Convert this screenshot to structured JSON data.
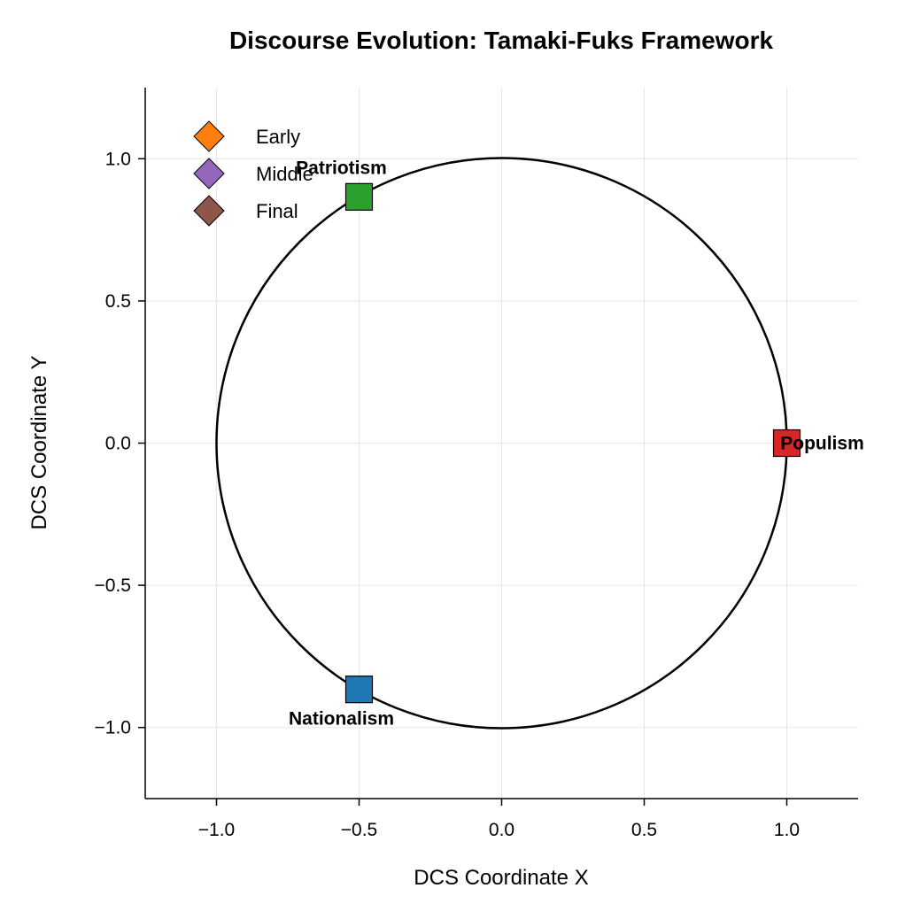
{
  "chart_data": {
    "type": "scatter",
    "title": "Discourse Evolution: Tamaki-Fuks Framework",
    "xlabel": "DCS Coordinate X",
    "ylabel": "DCS Coordinate Y",
    "xlim": [
      -1.25,
      1.25
    ],
    "ylim": [
      -1.25,
      1.25
    ],
    "xticks": [
      -1.0,
      -0.5,
      0.0,
      0.5,
      1.0
    ],
    "yticks": [
      -1.0,
      -0.5,
      0.0,
      0.5,
      1.0
    ],
    "xtick_labels": [
      "−1.0",
      "−0.5",
      "0.0",
      "0.5",
      "1.0"
    ],
    "ytick_labels": [
      "−1.0",
      "−0.5",
      "0.0",
      "0.5",
      "1.0"
    ],
    "grid": true,
    "legend_position": "top-left",
    "unit_circle": {
      "center": [
        0,
        0
      ],
      "radius": 1.0,
      "color": "#000000"
    },
    "anchors": [
      {
        "label": "Populism",
        "x": 1.0,
        "y": 0.0,
        "color": "#d62728",
        "label_pos": "center"
      },
      {
        "label": "Patriotism",
        "x": -0.5,
        "y": 0.866,
        "color": "#2ca02c",
        "label_pos": "above"
      },
      {
        "label": "Nationalism",
        "x": -0.5,
        "y": -0.866,
        "color": "#1f77b4",
        "label_pos": "below"
      }
    ],
    "series": [
      {
        "name": "Early",
        "color": "#ff7f0e",
        "marker": "diamond",
        "points": []
      },
      {
        "name": "Middle",
        "color": "#9467bd",
        "marker": "diamond",
        "points": []
      },
      {
        "name": "Final",
        "color": "#8c564b",
        "marker": "diamond",
        "points": []
      }
    ]
  }
}
